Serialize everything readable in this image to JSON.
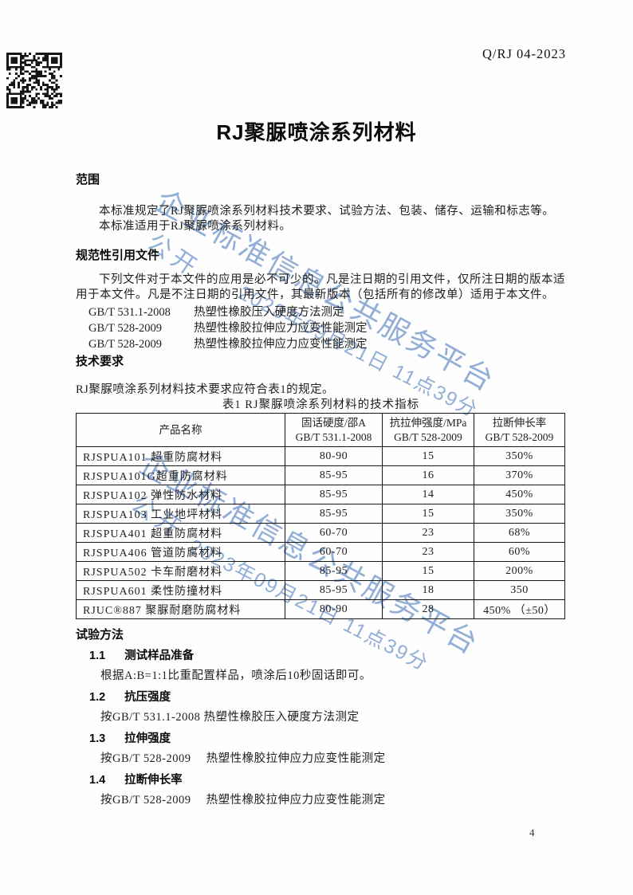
{
  "page": {
    "doc_number": "Q/RJ 04-2023",
    "title": "RJ聚脲喷涂系列材料",
    "page_number": "4"
  },
  "watermark": {
    "public": "公开",
    "main": "企业标准信息公共服务平台",
    "timestamp": "2023年09月21日 11点39分",
    "color": "#7a9ccd"
  },
  "scope": {
    "heading": "范围",
    "p1": "本标准规定了RJ聚脲喷涂系列材料技术要求、试验方法、包装、储存、运输和标志等。",
    "p2": "本标准适用于RJ聚脲喷涂系列材料。"
  },
  "references": {
    "heading": "规范性引用文件",
    "intro": "下列文件对于本文件的应用是必不可少的。凡是注日期的引用文件，仅所注日期的版本适用于本文件。凡是不注日期的引用文件，其最新版本（包括所有的修改单）适用于本文件。",
    "items": [
      {
        "code": "GB/T 531.1-2008",
        "title": "热塑性橡胶压入硬度方法测定"
      },
      {
        "code": "GB/T 528-2009",
        "title": "热塑性橡胶拉伸应力应变性能测定"
      },
      {
        "code": "GB/T 528-2009",
        "title": "热塑性橡胶拉伸应力应变性能测定"
      }
    ]
  },
  "technical": {
    "heading": "技术要求",
    "intro": "RJ聚脲喷涂系列材料技术要求应符合表1的规定。",
    "table_caption": "表1 RJ聚脲喷涂系列材料的技术指标"
  },
  "table": {
    "header": {
      "col1": "产品名称",
      "col2_line1": "固话硬度/邵A",
      "col2_line2": "GB/T 531.1-2008",
      "col3_line1": "抗拉伸强度/MPa",
      "col3_line2": "GB/T 528-2009",
      "col4_line1": "拉断伸长率",
      "col4_line2": "GB/T 528-2009"
    },
    "rows": [
      [
        "RJSPUA101 超重防腐材料",
        "80-90",
        "15",
        "350%"
      ],
      [
        "RJSPUA101G超重防腐材料",
        "85-95",
        "16",
        "370%"
      ],
      [
        "RJSPUA102 弹性防水材料",
        "85-95",
        "14",
        "450%"
      ],
      [
        "RJSPUA103 工业地坪材料",
        "85-95",
        "15",
        "350%"
      ],
      [
        "RJSPUA401 超重防腐材料",
        "60-70",
        "23",
        "68%"
      ],
      [
        "RJSPUA406 管道防腐材料",
        "60-70",
        "23",
        "60%"
      ],
      [
        "RJSPUA502 卡车耐磨材料",
        "85-95",
        "15",
        "200%"
      ],
      [
        "RJSPUA601 柔性防撞材料",
        "85-95",
        "18",
        "350"
      ],
      [
        "RJUC®887 聚脲耐磨防腐材料",
        "80-90",
        "28",
        "450% （±50）"
      ]
    ]
  },
  "test_methods": {
    "heading": "试验方法",
    "items": [
      {
        "number": "1.1",
        "title": "测试样品准备",
        "body": "根据A:B=1:1比重配置样品，喷涂后10秒固话即可。"
      },
      {
        "number": "1.2",
        "title": "抗压强度",
        "body": "按GB/T 531.1-2008 热塑性橡胶压入硬度方法测定"
      },
      {
        "number": "1.3",
        "title": "拉伸强度",
        "body": "按GB/T 528-2009　 热塑性橡胶拉伸应力应变性能测定"
      },
      {
        "number": "1.4",
        "title": "拉断伸长率",
        "body": "按GB/T 528-2009　 热塑性橡胶拉伸应力应变性能测定"
      }
    ]
  }
}
